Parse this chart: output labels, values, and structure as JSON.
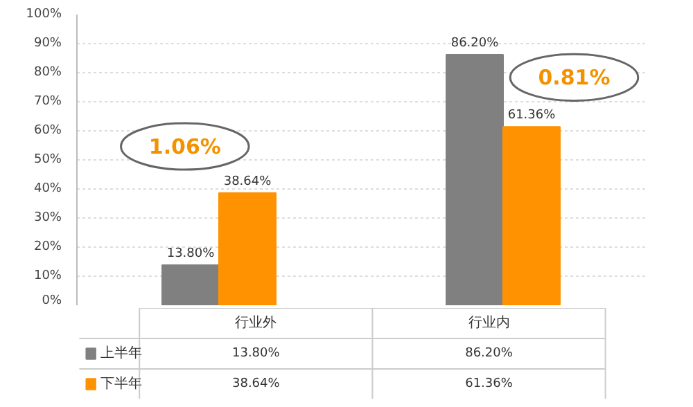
{
  "chart_data": {
    "type": "bar",
    "categories": [
      "行业外",
      "行业内"
    ],
    "series": [
      {
        "name": "上半年",
        "color": "#808080",
        "values": [
          13.8,
          86.2
        ],
        "value_labels": [
          "13.80%",
          "86.20%"
        ]
      },
      {
        "name": "下半年",
        "color": "#ff9200",
        "values": [
          38.64,
          61.36
        ],
        "value_labels": [
          "38.64%",
          "61.36%"
        ]
      }
    ],
    "annotations": [
      "1.06%",
      "0.81%"
    ],
    "ylim": [
      0,
      100
    ],
    "yticks": [
      {
        "value": 0,
        "label": "0%"
      },
      {
        "value": 10,
        "label": "10%"
      },
      {
        "value": 20,
        "label": "20%"
      },
      {
        "value": 30,
        "label": "30%"
      },
      {
        "value": 40,
        "label": "40%"
      },
      {
        "value": 50,
        "label": "50%"
      },
      {
        "value": 60,
        "label": "60%"
      },
      {
        "value": 70,
        "label": "70%"
      },
      {
        "value": 80,
        "label": "80%"
      },
      {
        "value": 90,
        "label": "90%"
      },
      {
        "value": 100,
        "label": "100%"
      }
    ],
    "grid": "y",
    "legend": "bottom left"
  }
}
